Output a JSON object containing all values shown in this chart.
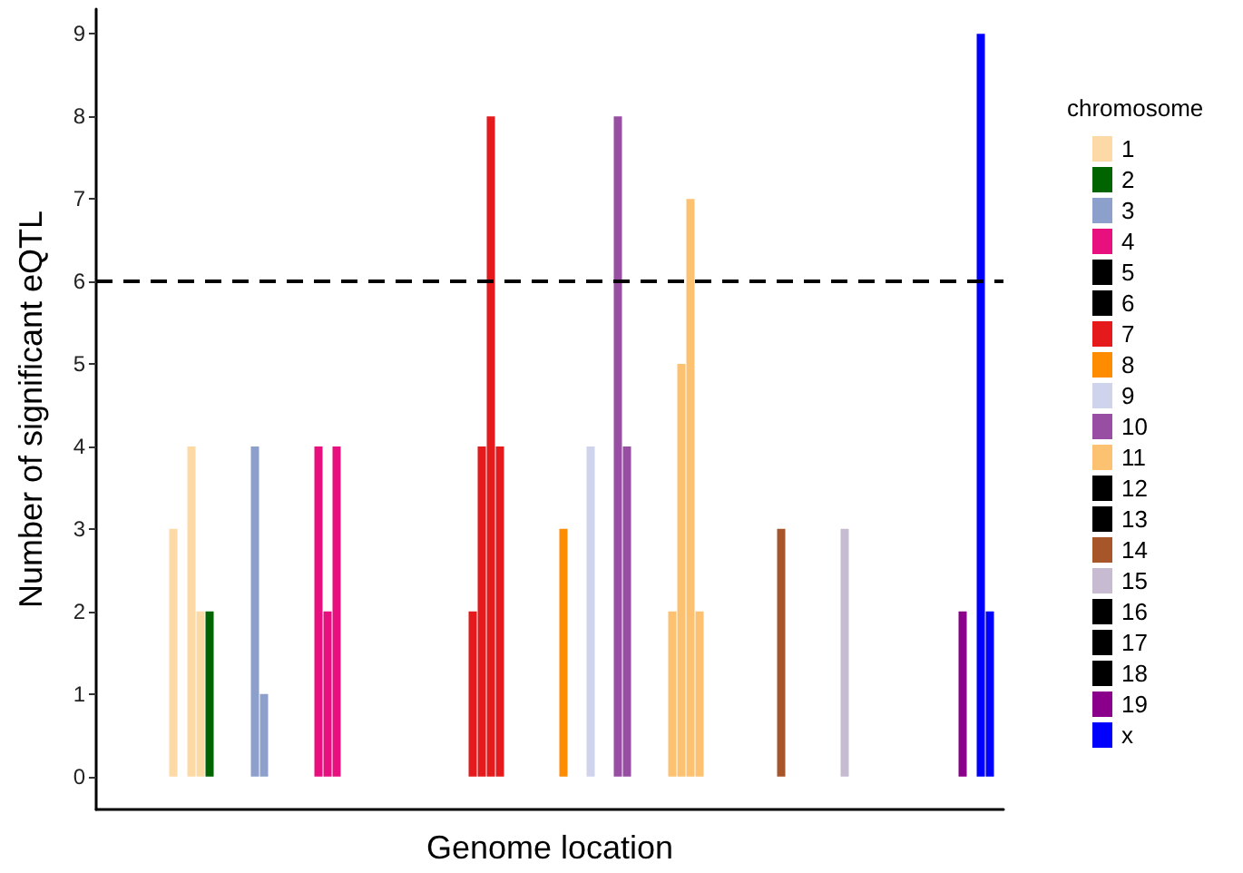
{
  "chart_data": {
    "type": "bar",
    "xlabel": "Genome location",
    "ylabel": "Number of significant eQTL",
    "legend_title": "chromosome",
    "legend": "right",
    "grid": false,
    "tick_labels": "y",
    "ylim": [
      -0.4,
      9.3
    ],
    "yticks": [
      0,
      1,
      2,
      3,
      4,
      5,
      6,
      7,
      8,
      9
    ],
    "ref_lines": [
      {
        "axis": "y",
        "value": 6,
        "color": "#000000",
        "line_style": "dashed"
      }
    ],
    "categories": [
      null,
      null,
      null,
      null,
      null,
      null,
      null,
      null,
      null,
      null,
      null,
      null,
      null,
      null,
      null,
      null,
      null,
      null,
      null,
      null,
      null,
      null,
      null,
      null,
      null,
      null,
      null,
      null,
      null,
      null,
      null,
      null,
      null,
      null,
      null,
      null,
      null,
      null,
      null,
      null,
      null,
      null,
      null,
      null,
      null,
      null,
      null,
      null,
      null,
      null,
      null,
      null,
      null,
      null,
      null,
      null,
      null,
      null,
      null,
      null,
      null,
      null,
      null,
      null,
      null,
      null,
      null,
      null,
      null,
      null,
      null,
      null,
      null,
      null,
      null,
      null,
      null,
      null,
      null,
      null,
      null,
      null,
      null,
      null,
      null,
      null,
      null,
      null,
      null,
      null,
      null,
      null,
      null,
      null,
      null,
      null,
      null,
      null,
      null,
      null
    ],
    "series": [
      {
        "name": "1",
        "color": "#fdd9a5",
        "values": [
          null,
          null,
          null,
          null,
          null,
          null,
          null,
          null,
          3,
          null,
          4,
          2,
          null,
          null,
          null,
          null,
          null,
          null,
          null,
          null,
          null,
          null,
          null,
          null,
          null,
          null,
          null,
          null,
          null,
          null,
          null,
          null,
          null,
          null,
          null,
          null,
          null,
          null,
          null,
          null,
          null,
          null,
          null,
          null,
          null,
          null,
          null,
          null,
          null,
          null,
          null,
          null,
          null,
          null,
          null,
          null,
          null,
          null,
          null,
          null,
          null,
          null,
          null,
          null,
          null,
          null,
          null,
          null,
          null,
          null,
          null,
          null,
          null,
          null,
          null,
          null,
          null,
          null,
          null,
          null,
          null,
          null,
          null,
          null,
          null,
          null,
          null,
          null,
          null,
          null,
          null,
          null,
          null,
          null,
          null,
          null,
          null,
          null,
          null,
          null
        ]
      },
      {
        "name": "2",
        "color": "#006400",
        "values": [
          null,
          null,
          null,
          null,
          null,
          null,
          null,
          null,
          null,
          null,
          null,
          null,
          2,
          null,
          null,
          null,
          null,
          null,
          null,
          null,
          null,
          null,
          null,
          null,
          null,
          null,
          null,
          null,
          null,
          null,
          null,
          null,
          null,
          null,
          null,
          null,
          null,
          null,
          null,
          null,
          null,
          null,
          null,
          null,
          null,
          null,
          null,
          null,
          null,
          null,
          null,
          null,
          null,
          null,
          null,
          null,
          null,
          null,
          null,
          null,
          null,
          null,
          null,
          null,
          null,
          null,
          null,
          null,
          null,
          null,
          null,
          null,
          null,
          null,
          null,
          null,
          null,
          null,
          null,
          null,
          null,
          null,
          null,
          null,
          null,
          null,
          null,
          null,
          null,
          null,
          null,
          null,
          null,
          null,
          null,
          null,
          null,
          null,
          null,
          null
        ]
      },
      {
        "name": "3",
        "color": "#8da0cb",
        "values": [
          null,
          null,
          null,
          null,
          null,
          null,
          null,
          null,
          null,
          null,
          null,
          null,
          null,
          null,
          null,
          null,
          null,
          4,
          1,
          null,
          null,
          null,
          null,
          null,
          null,
          null,
          null,
          null,
          null,
          null,
          null,
          null,
          null,
          null,
          null,
          null,
          null,
          null,
          null,
          null,
          null,
          null,
          null,
          null,
          null,
          null,
          null,
          null,
          null,
          null,
          null,
          null,
          null,
          null,
          null,
          null,
          null,
          null,
          null,
          null,
          null,
          null,
          null,
          null,
          null,
          null,
          null,
          null,
          null,
          null,
          null,
          null,
          null,
          null,
          null,
          null,
          null,
          null,
          null,
          null,
          null,
          null,
          null,
          null,
          null,
          null,
          null,
          null,
          null,
          null,
          null,
          null,
          null,
          null,
          null,
          null,
          null,
          null,
          null,
          null
        ]
      },
      {
        "name": "4",
        "color": "#e7107e",
        "values": [
          null,
          null,
          null,
          null,
          null,
          null,
          null,
          null,
          null,
          null,
          null,
          null,
          null,
          null,
          null,
          null,
          null,
          null,
          null,
          null,
          null,
          null,
          null,
          null,
          4,
          2,
          4,
          null,
          null,
          null,
          null,
          null,
          null,
          null,
          null,
          null,
          null,
          null,
          null,
          null,
          null,
          null,
          null,
          null,
          null,
          null,
          null,
          null,
          null,
          null,
          null,
          null,
          null,
          null,
          null,
          null,
          null,
          null,
          null,
          null,
          null,
          null,
          null,
          null,
          null,
          null,
          null,
          null,
          null,
          null,
          null,
          null,
          null,
          null,
          null,
          null,
          null,
          null,
          null,
          null,
          null,
          null,
          null,
          null,
          null,
          null,
          null,
          null,
          null,
          null,
          null,
          null,
          null,
          null,
          null,
          null,
          null,
          null,
          null,
          null
        ]
      },
      {
        "name": "5",
        "color": "#000000",
        "values": [
          null,
          null,
          null,
          null,
          null,
          null,
          null,
          null,
          null,
          null,
          null,
          null,
          null,
          null,
          null,
          null,
          null,
          null,
          null,
          null,
          null,
          null,
          null,
          null,
          null,
          null,
          null,
          null,
          null,
          null,
          null,
          null,
          null,
          null,
          null,
          null,
          null,
          null,
          null,
          null,
          null,
          null,
          null,
          null,
          null,
          null,
          null,
          null,
          null,
          null,
          null,
          null,
          null,
          null,
          null,
          null,
          null,
          null,
          null,
          null,
          null,
          null,
          null,
          null,
          null,
          null,
          null,
          null,
          null,
          null,
          null,
          null,
          null,
          null,
          null,
          null,
          null,
          null,
          null,
          null,
          null,
          null,
          null,
          null,
          null,
          null,
          null,
          null,
          null,
          null,
          null,
          null,
          null,
          null,
          null,
          null,
          null,
          null,
          null,
          null
        ]
      },
      {
        "name": "6",
        "color": "#000000",
        "values": [
          null,
          null,
          null,
          null,
          null,
          null,
          null,
          null,
          null,
          null,
          null,
          null,
          null,
          null,
          null,
          null,
          null,
          null,
          null,
          null,
          null,
          null,
          null,
          null,
          null,
          null,
          null,
          null,
          null,
          null,
          null,
          null,
          null,
          null,
          null,
          null,
          null,
          null,
          null,
          null,
          null,
          null,
          null,
          null,
          null,
          null,
          null,
          null,
          null,
          null,
          null,
          null,
          null,
          null,
          null,
          null,
          null,
          null,
          null,
          null,
          null,
          null,
          null,
          null,
          null,
          null,
          null,
          null,
          null,
          null,
          null,
          null,
          null,
          null,
          null,
          null,
          null,
          null,
          null,
          null,
          null,
          null,
          null,
          null,
          null,
          null,
          null,
          null,
          null,
          null,
          null,
          null,
          null,
          null,
          null,
          null,
          null,
          null,
          null,
          null
        ]
      },
      {
        "name": "7",
        "color": "#e41a1c",
        "values": [
          null,
          null,
          null,
          null,
          null,
          null,
          null,
          null,
          null,
          null,
          null,
          null,
          null,
          null,
          null,
          null,
          null,
          null,
          null,
          null,
          null,
          null,
          null,
          null,
          null,
          null,
          null,
          null,
          null,
          null,
          null,
          null,
          null,
          null,
          null,
          null,
          null,
          null,
          null,
          null,
          null,
          2,
          4,
          8,
          4,
          null,
          null,
          null,
          null,
          null,
          null,
          null,
          null,
          null,
          null,
          null,
          null,
          null,
          null,
          null,
          null,
          null,
          null,
          null,
          null,
          null,
          null,
          null,
          null,
          null,
          null,
          null,
          null,
          null,
          null,
          null,
          null,
          null,
          null,
          null,
          null,
          null,
          null,
          null,
          null,
          null,
          null,
          null,
          null,
          null,
          null,
          null,
          null,
          null,
          null,
          null,
          null,
          null,
          null,
          null
        ]
      },
      {
        "name": "8",
        "color": "#ff8c00",
        "values": [
          null,
          null,
          null,
          null,
          null,
          null,
          null,
          null,
          null,
          null,
          null,
          null,
          null,
          null,
          null,
          null,
          null,
          null,
          null,
          null,
          null,
          null,
          null,
          null,
          null,
          null,
          null,
          null,
          null,
          null,
          null,
          null,
          null,
          null,
          null,
          null,
          null,
          null,
          null,
          null,
          null,
          null,
          null,
          null,
          null,
          null,
          null,
          null,
          null,
          null,
          null,
          3,
          null,
          null,
          null,
          null,
          null,
          null,
          null,
          null,
          null,
          null,
          null,
          null,
          null,
          null,
          null,
          null,
          null,
          null,
          null,
          null,
          null,
          null,
          null,
          null,
          null,
          null,
          null,
          null,
          null,
          null,
          null,
          null,
          null,
          null,
          null,
          null,
          null,
          null,
          null,
          null,
          null,
          null,
          null,
          null,
          null,
          null,
          null,
          null
        ]
      },
      {
        "name": "9",
        "color": "#d0d3ec",
        "values": [
          null,
          null,
          null,
          null,
          null,
          null,
          null,
          null,
          null,
          null,
          null,
          null,
          null,
          null,
          null,
          null,
          null,
          null,
          null,
          null,
          null,
          null,
          null,
          null,
          null,
          null,
          null,
          null,
          null,
          null,
          null,
          null,
          null,
          null,
          null,
          null,
          null,
          null,
          null,
          null,
          null,
          null,
          null,
          null,
          null,
          null,
          null,
          null,
          null,
          null,
          null,
          null,
          null,
          null,
          4,
          null,
          null,
          null,
          null,
          null,
          null,
          null,
          null,
          null,
          null,
          null,
          null,
          null,
          null,
          null,
          null,
          null,
          null,
          null,
          null,
          null,
          null,
          null,
          null,
          null,
          null,
          null,
          null,
          null,
          null,
          null,
          null,
          null,
          null,
          null,
          null,
          null,
          null,
          null,
          null,
          null,
          null,
          null,
          null,
          null
        ]
      },
      {
        "name": "10",
        "color": "#984ea3",
        "values": [
          null,
          null,
          null,
          null,
          null,
          null,
          null,
          null,
          null,
          null,
          null,
          null,
          null,
          null,
          null,
          null,
          null,
          null,
          null,
          null,
          null,
          null,
          null,
          null,
          null,
          null,
          null,
          null,
          null,
          null,
          null,
          null,
          null,
          null,
          null,
          null,
          null,
          null,
          null,
          null,
          null,
          null,
          null,
          null,
          null,
          null,
          null,
          null,
          null,
          null,
          null,
          null,
          null,
          null,
          null,
          null,
          null,
          8,
          4,
          null,
          null,
          null,
          null,
          null,
          null,
          null,
          null,
          null,
          null,
          null,
          null,
          null,
          null,
          null,
          null,
          null,
          null,
          null,
          null,
          null,
          null,
          null,
          null,
          null,
          null,
          null,
          null,
          null,
          null,
          null,
          null,
          null,
          null,
          null,
          null,
          null,
          null,
          null,
          null,
          null
        ]
      },
      {
        "name": "11",
        "color": "#fdc172",
        "values": [
          null,
          null,
          null,
          null,
          null,
          null,
          null,
          null,
          null,
          null,
          null,
          null,
          null,
          null,
          null,
          null,
          null,
          null,
          null,
          null,
          null,
          null,
          null,
          null,
          null,
          null,
          null,
          null,
          null,
          null,
          null,
          null,
          null,
          null,
          null,
          null,
          null,
          null,
          null,
          null,
          null,
          null,
          null,
          null,
          null,
          null,
          null,
          null,
          null,
          null,
          null,
          null,
          null,
          null,
          null,
          null,
          null,
          null,
          null,
          null,
          null,
          null,
          null,
          2,
          5,
          7,
          2,
          null,
          null,
          null,
          null,
          null,
          null,
          null,
          null,
          null,
          null,
          null,
          null,
          null,
          null,
          null,
          null,
          null,
          null,
          null,
          null,
          null,
          null,
          null,
          null,
          null,
          null,
          null,
          null,
          null,
          null,
          null,
          null,
          null
        ]
      },
      {
        "name": "12",
        "color": "#000000",
        "values": [
          null,
          null,
          null,
          null,
          null,
          null,
          null,
          null,
          null,
          null,
          null,
          null,
          null,
          null,
          null,
          null,
          null,
          null,
          null,
          null,
          null,
          null,
          null,
          null,
          null,
          null,
          null,
          null,
          null,
          null,
          null,
          null,
          null,
          null,
          null,
          null,
          null,
          null,
          null,
          null,
          null,
          null,
          null,
          null,
          null,
          null,
          null,
          null,
          null,
          null,
          null,
          null,
          null,
          null,
          null,
          null,
          null,
          null,
          null,
          null,
          null,
          null,
          null,
          null,
          null,
          null,
          null,
          null,
          null,
          null,
          null,
          null,
          null,
          null,
          null,
          null,
          null,
          null,
          null,
          null,
          null,
          null,
          null,
          null,
          null,
          null,
          null,
          null,
          null,
          null,
          null,
          null,
          null,
          null,
          null,
          null,
          null,
          null,
          null,
          null
        ]
      },
      {
        "name": "13",
        "color": "#000000",
        "values": [
          null,
          null,
          null,
          null,
          null,
          null,
          null,
          null,
          null,
          null,
          null,
          null,
          null,
          null,
          null,
          null,
          null,
          null,
          null,
          null,
          null,
          null,
          null,
          null,
          null,
          null,
          null,
          null,
          null,
          null,
          null,
          null,
          null,
          null,
          null,
          null,
          null,
          null,
          null,
          null,
          null,
          null,
          null,
          null,
          null,
          null,
          null,
          null,
          null,
          null,
          null,
          null,
          null,
          null,
          null,
          null,
          null,
          null,
          null,
          null,
          null,
          null,
          null,
          null,
          null,
          null,
          null,
          null,
          null,
          null,
          null,
          null,
          null,
          null,
          null,
          null,
          null,
          null,
          null,
          null,
          null,
          null,
          null,
          null,
          null,
          null,
          null,
          null,
          null,
          null,
          null,
          null,
          null,
          null,
          null,
          null,
          null,
          null,
          null,
          null
        ]
      },
      {
        "name": "14",
        "color": "#a65628",
        "values": [
          null,
          null,
          null,
          null,
          null,
          null,
          null,
          null,
          null,
          null,
          null,
          null,
          null,
          null,
          null,
          null,
          null,
          null,
          null,
          null,
          null,
          null,
          null,
          null,
          null,
          null,
          null,
          null,
          null,
          null,
          null,
          null,
          null,
          null,
          null,
          null,
          null,
          null,
          null,
          null,
          null,
          null,
          null,
          null,
          null,
          null,
          null,
          null,
          null,
          null,
          null,
          null,
          null,
          null,
          null,
          null,
          null,
          null,
          null,
          null,
          null,
          null,
          null,
          null,
          null,
          null,
          null,
          null,
          null,
          null,
          null,
          null,
          null,
          null,
          null,
          3,
          null,
          null,
          null,
          null,
          null,
          null,
          null,
          null,
          null,
          null,
          null,
          null,
          null,
          null,
          null,
          null,
          null,
          null,
          null,
          null,
          null,
          null,
          null,
          null
        ]
      },
      {
        "name": "15",
        "color": "#c6bbd1",
        "values": [
          null,
          null,
          null,
          null,
          null,
          null,
          null,
          null,
          null,
          null,
          null,
          null,
          null,
          null,
          null,
          null,
          null,
          null,
          null,
          null,
          null,
          null,
          null,
          null,
          null,
          null,
          null,
          null,
          null,
          null,
          null,
          null,
          null,
          null,
          null,
          null,
          null,
          null,
          null,
          null,
          null,
          null,
          null,
          null,
          null,
          null,
          null,
          null,
          null,
          null,
          null,
          null,
          null,
          null,
          null,
          null,
          null,
          null,
          null,
          null,
          null,
          null,
          null,
          null,
          null,
          null,
          null,
          null,
          null,
          null,
          null,
          null,
          null,
          null,
          null,
          null,
          null,
          null,
          null,
          null,
          null,
          null,
          3,
          null,
          null,
          null,
          null,
          null,
          null,
          null,
          null,
          null,
          null,
          null,
          null,
          null,
          null,
          null,
          null,
          null
        ]
      },
      {
        "name": "16",
        "color": "#000000",
        "values": [
          null,
          null,
          null,
          null,
          null,
          null,
          null,
          null,
          null,
          null,
          null,
          null,
          null,
          null,
          null,
          null,
          null,
          null,
          null,
          null,
          null,
          null,
          null,
          null,
          null,
          null,
          null,
          null,
          null,
          null,
          null,
          null,
          null,
          null,
          null,
          null,
          null,
          null,
          null,
          null,
          null,
          null,
          null,
          null,
          null,
          null,
          null,
          null,
          null,
          null,
          null,
          null,
          null,
          null,
          null,
          null,
          null,
          null,
          null,
          null,
          null,
          null,
          null,
          null,
          null,
          null,
          null,
          null,
          null,
          null,
          null,
          null,
          null,
          null,
          null,
          null,
          null,
          null,
          null,
          null,
          null,
          null,
          null,
          null,
          null,
          null,
          null,
          null,
          null,
          null,
          null,
          null,
          null,
          null,
          null,
          null,
          null,
          null,
          null,
          null
        ]
      },
      {
        "name": "17",
        "color": "#000000",
        "values": [
          null,
          null,
          null,
          null,
          null,
          null,
          null,
          null,
          null,
          null,
          null,
          null,
          null,
          null,
          null,
          null,
          null,
          null,
          null,
          null,
          null,
          null,
          null,
          null,
          null,
          null,
          null,
          null,
          null,
          null,
          null,
          null,
          null,
          null,
          null,
          null,
          null,
          null,
          null,
          null,
          null,
          null,
          null,
          null,
          null,
          null,
          null,
          null,
          null,
          null,
          null,
          null,
          null,
          null,
          null,
          null,
          null,
          null,
          null,
          null,
          null,
          null,
          null,
          null,
          null,
          null,
          null,
          null,
          null,
          null,
          null,
          null,
          null,
          null,
          null,
          null,
          null,
          null,
          null,
          null,
          null,
          null,
          null,
          null,
          null,
          null,
          null,
          null,
          null,
          null,
          null,
          null,
          null,
          null,
          null,
          null,
          null,
          null,
          null,
          null
        ]
      },
      {
        "name": "18",
        "color": "#000000",
        "values": [
          null,
          null,
          null,
          null,
          null,
          null,
          null,
          null,
          null,
          null,
          null,
          null,
          null,
          null,
          null,
          null,
          null,
          null,
          null,
          null,
          null,
          null,
          null,
          null,
          null,
          null,
          null,
          null,
          null,
          null,
          null,
          null,
          null,
          null,
          null,
          null,
          null,
          null,
          null,
          null,
          null,
          null,
          null,
          null,
          null,
          null,
          null,
          null,
          null,
          null,
          null,
          null,
          null,
          null,
          null,
          null,
          null,
          null,
          null,
          null,
          null,
          null,
          null,
          null,
          null,
          null,
          null,
          null,
          null,
          null,
          null,
          null,
          null,
          null,
          null,
          null,
          null,
          null,
          null,
          null,
          null,
          null,
          null,
          null,
          null,
          null,
          null,
          null,
          null,
          null,
          null,
          null,
          null,
          null,
          null,
          null,
          null,
          null,
          null,
          null
        ]
      },
      {
        "name": "19",
        "color": "#8b008b",
        "values": [
          null,
          null,
          null,
          null,
          null,
          null,
          null,
          null,
          null,
          null,
          null,
          null,
          null,
          null,
          null,
          null,
          null,
          null,
          null,
          null,
          null,
          null,
          null,
          null,
          null,
          null,
          null,
          null,
          null,
          null,
          null,
          null,
          null,
          null,
          null,
          null,
          null,
          null,
          null,
          null,
          null,
          null,
          null,
          null,
          null,
          null,
          null,
          null,
          null,
          null,
          null,
          null,
          null,
          null,
          null,
          null,
          null,
          null,
          null,
          null,
          null,
          null,
          null,
          null,
          null,
          null,
          null,
          null,
          null,
          null,
          null,
          null,
          null,
          null,
          null,
          null,
          null,
          null,
          null,
          null,
          null,
          null,
          null,
          null,
          null,
          null,
          null,
          null,
          null,
          null,
          null,
          null,
          null,
          null,
          null,
          2,
          null,
          null,
          null,
          null
        ]
      },
      {
        "name": "x",
        "color": "#0000ff",
        "values": [
          null,
          null,
          null,
          null,
          null,
          null,
          null,
          null,
          null,
          null,
          null,
          null,
          null,
          null,
          null,
          null,
          null,
          null,
          null,
          null,
          null,
          null,
          null,
          null,
          null,
          null,
          null,
          null,
          null,
          null,
          null,
          null,
          null,
          null,
          null,
          null,
          null,
          null,
          null,
          null,
          null,
          null,
          null,
          null,
          null,
          null,
          null,
          null,
          null,
          null,
          null,
          null,
          null,
          null,
          null,
          null,
          null,
          null,
          null,
          null,
          null,
          null,
          null,
          null,
          null,
          null,
          null,
          null,
          null,
          null,
          null,
          null,
          null,
          null,
          null,
          null,
          null,
          null,
          null,
          null,
          null,
          null,
          null,
          null,
          null,
          null,
          null,
          null,
          null,
          null,
          null,
          null,
          null,
          null,
          null,
          null,
          null,
          9,
          2,
          null
        ]
      }
    ]
  }
}
